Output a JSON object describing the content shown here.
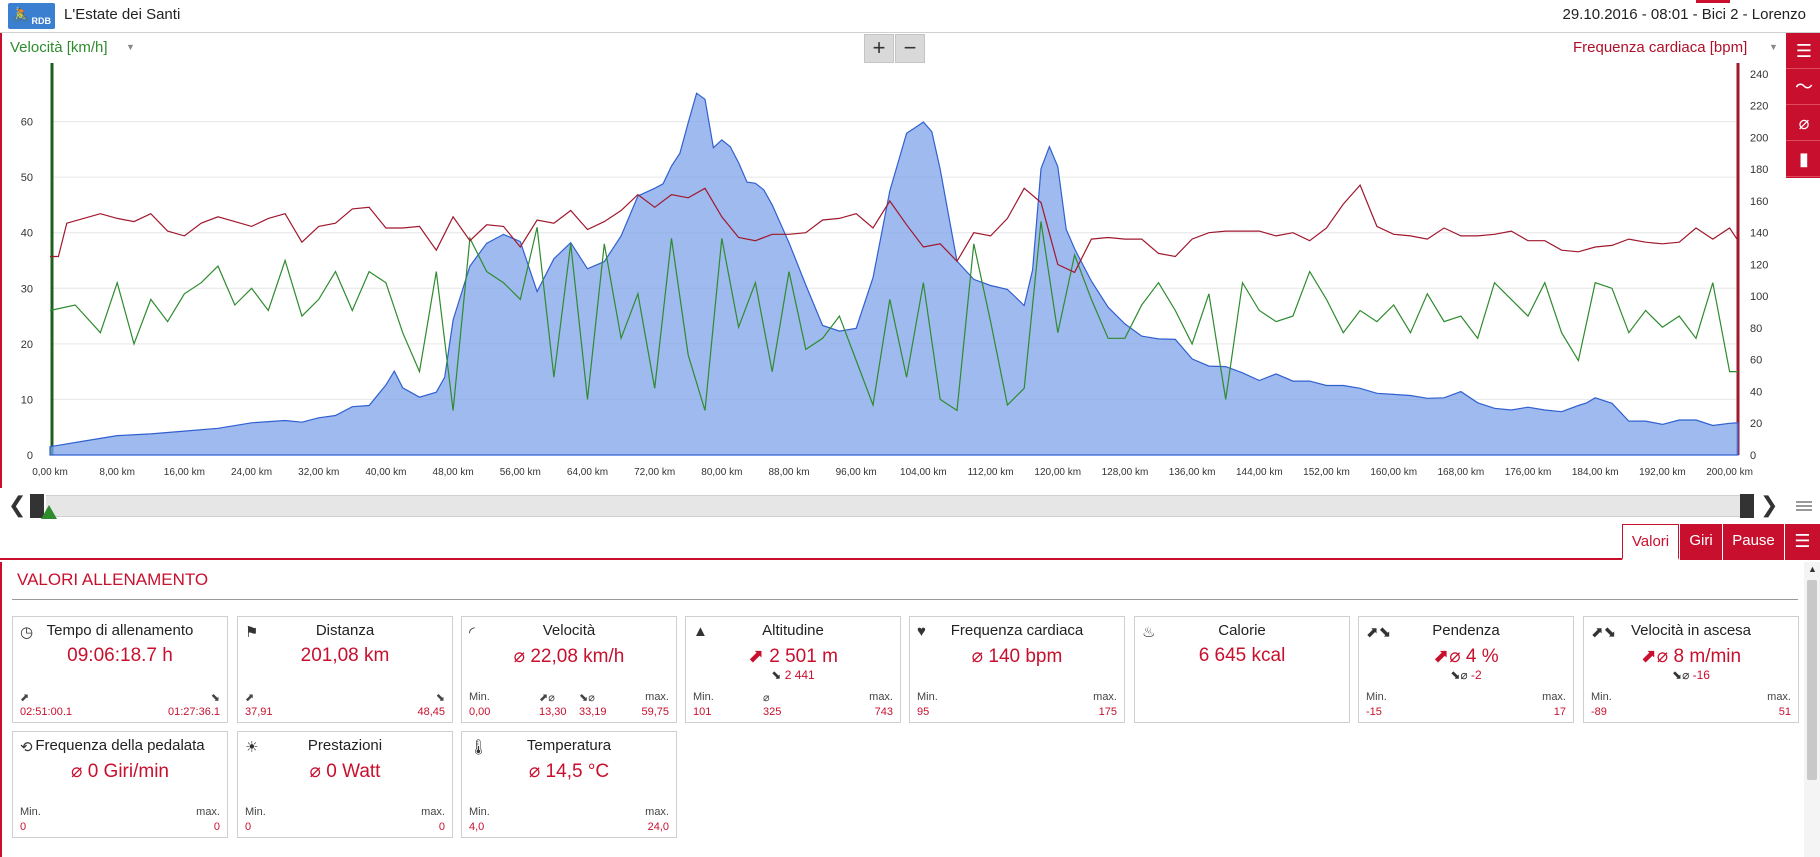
{
  "header": {
    "logo_text": "RDB",
    "app_title": "L'Estate  dei Santi",
    "session": "29.10.2016  -  08:01  -  Bici 2  -  Lorenzo"
  },
  "chart": {
    "left_series_selector": "Velocità [km/h]",
    "right_series_selector": "Frequenza cardiaca [bpm]",
    "zoom_in": "+",
    "zoom_out": "−",
    "tools": [
      "list-icon",
      "line-chart-icon",
      "average-icon",
      "bar-chart-icon"
    ]
  },
  "chart_data": {
    "type": "area",
    "xlabel": "",
    "x_ticks": [
      "0,00 km",
      "8,00 km",
      "16,00 km",
      "24,00 km",
      "32,00 km",
      "40,00 km",
      "48,00 km",
      "56,00 km",
      "64,00 km",
      "72,00 km",
      "80,00 km",
      "88,00 km",
      "96,00 km",
      "104,00 km",
      "112,00 km",
      "120,00 km",
      "128,00 km",
      "136,00 km",
      "144,00 km",
      "152,00 km",
      "160,00 km",
      "168,00 km",
      "176,00 km",
      "184,00 km",
      "192,00 km",
      "200,00 km"
    ],
    "xlim": [
      0,
      201
    ],
    "y_left": {
      "ticks": [
        0,
        10,
        20,
        30,
        40,
        50,
        60
      ],
      "ylim": [
        0,
        70
      ]
    },
    "y_right": {
      "ticks": [
        0,
        20,
        40,
        60,
        80,
        100,
        120,
        140,
        160,
        180,
        200,
        220,
        240
      ],
      "ylim": [
        0,
        245
      ]
    },
    "series": [
      {
        "name": "Altitudine",
        "axis": "left",
        "color": "#7ea3e8",
        "x": [
          0,
          4,
          8,
          12,
          16,
          20,
          24,
          28,
          30,
          32,
          34,
          36,
          38,
          40,
          41,
          42,
          44,
          46,
          47,
          48,
          50,
          52,
          54,
          56,
          58,
          60,
          62,
          64,
          66,
          68,
          70,
          72,
          73,
          74,
          75,
          76,
          77,
          78,
          79,
          80,
          81,
          82,
          83,
          84,
          85,
          86,
          88,
          90,
          92,
          94,
          96,
          98,
          100,
          102,
          103,
          104,
          105,
          106,
          108,
          110,
          112,
          114,
          116,
          117,
          118,
          119,
          120,
          121,
          122,
          124,
          126,
          128,
          130,
          132,
          134,
          136,
          138,
          140,
          142,
          144,
          146,
          148,
          150,
          152,
          154,
          156,
          158,
          160,
          162,
          164,
          166,
          168,
          170,
          172,
          174,
          176,
          178,
          180,
          182,
          183,
          184,
          186,
          188,
          190,
          192,
          194,
          196,
          198,
          200,
          201
        ],
        "y": [
          1.5,
          2.5,
          3.5,
          3.8,
          4.3,
          4.8,
          5.8,
          6.2,
          5.9,
          6.7,
          7.1,
          8.7,
          8.9,
          12.6,
          15.1,
          12.1,
          10.4,
          11.3,
          14,
          24.3,
          34,
          38.1,
          39.7,
          38.4,
          29.4,
          35.3,
          38.2,
          33.5,
          34.8,
          39.4,
          46.6,
          48,
          48.8,
          52,
          54.3,
          59.8,
          65.1,
          64,
          55.3,
          56.7,
          55.5,
          52.6,
          49.1,
          48.9,
          47.7,
          45,
          38.2,
          30.6,
          23.3,
          22.3,
          22.8,
          31.9,
          47.5,
          57.9,
          58.9,
          59.9,
          58.2,
          51.4,
          34.9,
          31.6,
          30.5,
          29.8,
          26.9,
          33.3,
          51.5,
          55.5,
          51.9,
          40.6,
          37.1,
          31.3,
          26.6,
          23.6,
          21.4,
          20.9,
          20.8,
          17.3,
          16,
          15.9,
          14.8,
          13.4,
          14.6,
          13.3,
          13.3,
          12.5,
          12.5,
          12,
          11.1,
          10.9,
          10.7,
          10.2,
          10.3,
          11.4,
          9.4,
          8.4,
          8.1,
          8.6,
          8.1,
          7.8,
          8.9,
          9.4,
          10.3,
          9.3,
          6.1,
          6.1,
          5.5,
          6.3,
          6.3,
          5.3,
          5.7,
          5.8
        ]
      },
      {
        "name": "Velocità",
        "axis": "left",
        "color": "#2e8b2e",
        "x": [
          0,
          3,
          6,
          8,
          10,
          12,
          14,
          16,
          18,
          20,
          22,
          24,
          26,
          28,
          30,
          32,
          34,
          36,
          38,
          40,
          42,
          44,
          46,
          48,
          50,
          52,
          54,
          56,
          58,
          60,
          62,
          64,
          66,
          68,
          70,
          72,
          74,
          76,
          78,
          80,
          82,
          84,
          86,
          88,
          90,
          92,
          94,
          96,
          98,
          100,
          102,
          104,
          106,
          108,
          110,
          112,
          114,
          116,
          118,
          120,
          122,
          124,
          126,
          128,
          130,
          132,
          134,
          136,
          138,
          140,
          142,
          144,
          146,
          148,
          150,
          152,
          154,
          156,
          158,
          160,
          162,
          164,
          166,
          168,
          170,
          172,
          174,
          176,
          178,
          180,
          182,
          184,
          186,
          188,
          190,
          192,
          194,
          196,
          198,
          200,
          201
        ],
        "y": [
          26,
          27,
          22,
          31,
          20,
          28,
          24,
          29,
          31,
          34,
          27,
          30,
          26,
          35,
          25,
          28,
          33,
          26,
          33,
          31,
          22,
          15,
          33,
          8,
          39,
          33,
          31,
          28,
          41,
          14,
          38,
          10,
          38,
          21,
          29,
          12,
          39,
          18,
          8,
          39,
          23,
          31,
          15,
          33,
          19,
          21,
          25,
          17,
          9,
          28,
          14,
          31,
          10,
          8,
          38,
          24,
          9,
          12,
          42,
          22,
          36,
          28,
          21,
          21,
          27,
          31,
          26,
          20,
          29,
          10,
          31,
          26,
          24,
          25,
          33,
          28,
          22,
          26,
          24,
          27,
          22,
          29,
          24,
          25,
          21,
          31,
          28,
          25,
          31,
          22,
          17,
          31,
          30,
          22,
          26,
          23,
          25,
          21,
          31,
          15,
          15
        ]
      },
      {
        "name": "Frequenza cardiaca",
        "axis": "right",
        "color": "#a0182e",
        "x": [
          0,
          1,
          2,
          4,
          6,
          8,
          10,
          12,
          14,
          16,
          18,
          20,
          22,
          24,
          26,
          28,
          30,
          32,
          34,
          36,
          38,
          40,
          42,
          44,
          46,
          48,
          50,
          52,
          54,
          56,
          58,
          60,
          62,
          64,
          66,
          68,
          70,
          72,
          74,
          76,
          78,
          80,
          82,
          84,
          86,
          88,
          90,
          92,
          94,
          96,
          98,
          100,
          102,
          104,
          106,
          108,
          110,
          112,
          114,
          116,
          118,
          120,
          122,
          124,
          126,
          128,
          130,
          132,
          134,
          136,
          138,
          140,
          142,
          144,
          146,
          148,
          150,
          152,
          154,
          156,
          158,
          160,
          162,
          164,
          166,
          168,
          170,
          172,
          174,
          176,
          178,
          180,
          182,
          184,
          186,
          188,
          190,
          192,
          194,
          196,
          198,
          200,
          201
        ],
        "y": [
          125,
          125,
          146,
          149,
          152,
          149,
          147,
          152,
          141,
          138,
          146,
          150,
          147,
          144,
          149,
          152,
          134,
          144,
          146,
          155,
          156,
          143,
          143,
          144,
          129,
          150,
          135,
          145,
          144,
          131,
          148,
          146,
          154,
          142,
          147,
          154,
          164,
          156,
          164,
          162,
          168,
          150,
          137,
          135,
          139,
          139,
          140,
          148,
          149,
          152,
          143,
          160,
          145,
          131,
          133,
          122,
          140,
          138,
          149,
          168,
          159,
          120,
          115,
          136,
          137,
          136,
          136,
          127,
          125,
          136,
          140,
          141,
          141,
          141,
          138,
          140,
          135,
          143,
          158,
          170,
          144,
          139,
          138,
          136,
          143,
          138,
          138,
          139,
          141,
          135,
          135,
          129,
          128,
          131,
          132,
          136,
          134,
          133,
          134,
          143,
          136,
          143,
          135
        ]
      }
    ]
  },
  "scrubber": {
    "prev": "❮",
    "next": "❯"
  },
  "tabs": [
    {
      "label": "Valori",
      "active": true
    },
    {
      "label": "Giri",
      "active": false
    },
    {
      "label": "Pause",
      "active": false
    }
  ],
  "panel": {
    "title": "VALORI ALLENAMENTO",
    "cards": [
      {
        "icon": "stopwatch-icon",
        "glyph": "◷",
        "title": "Tempo di allenamento",
        "value": "09:06:18.7 h",
        "sub_a": "",
        "sub_b": "",
        "labels": [
          "⬈",
          "",
          "",
          "⬊"
        ],
        "values": [
          "02:51:00.1",
          "",
          "",
          "01:27:36.1"
        ]
      },
      {
        "icon": "signpost-icon",
        "glyph": "⚑",
        "title": "Distanza",
        "value": "201,08 km",
        "sub_a": "",
        "sub_b": "",
        "labels": [
          "⬈",
          "",
          "",
          "⬊"
        ],
        "values": [
          "37,91",
          "",
          "",
          "48,45"
        ]
      },
      {
        "icon": "gauge-icon",
        "glyph": "◜",
        "title": "Velocità",
        "value": "⌀ 22,08 km/h",
        "sub_a": "",
        "sub_b": "",
        "labels": [
          "Min.",
          "⬈⌀",
          "⬊⌀",
          "max."
        ],
        "values": [
          "0,00",
          "13,30",
          "33,19",
          "59,75"
        ]
      },
      {
        "icon": "mountain-icon",
        "glyph": "▲",
        "title": "Altitudine",
        "value": "⬈ 2 501 m",
        "sub_a": "⬊",
        "sub_b": "2 441",
        "labels": [
          "Min.",
          "⌀",
          "",
          "max."
        ],
        "values": [
          "101",
          "325",
          "",
          "743"
        ]
      },
      {
        "icon": "heart-icon",
        "glyph": "♥",
        "title": "Frequenza cardiaca",
        "value": "⌀ 140 bpm",
        "sub_a": "",
        "sub_b": "",
        "labels": [
          "Min.",
          "",
          "",
          "max."
        ],
        "values": [
          "95",
          "",
          "",
          "175"
        ]
      },
      {
        "icon": "flame-icon",
        "glyph": "♨",
        "title": "Calorie",
        "value": "6 645 kcal",
        "sub_a": "",
        "sub_b": "",
        "labels": [
          "",
          "",
          "",
          ""
        ],
        "values": [
          "",
          "",
          "",
          ""
        ]
      },
      {
        "icon": "slope-icon",
        "glyph": "⬈⬊",
        "title": "Pendenza",
        "value": "⬈⌀ 4 %",
        "sub_a": "⬊⌀",
        "sub_b": "-2",
        "labels": [
          "Min.",
          "",
          "",
          "max."
        ],
        "values": [
          "-15",
          "",
          "",
          "17"
        ]
      },
      {
        "icon": "climb-speed-icon",
        "glyph": "⬈⬊",
        "title": "Velocità in ascesa",
        "value": "⬈⌀ 8 m/min",
        "sub_a": "⬊⌀",
        "sub_b": "-16",
        "labels": [
          "Min.",
          "",
          "",
          "max."
        ],
        "values": [
          "-89",
          "",
          "",
          "51"
        ]
      },
      {
        "icon": "cadence-icon",
        "glyph": "⟲",
        "title": "Frequenza della pedalata",
        "value": "⌀ 0 Giri/min",
        "sub_a": "",
        "sub_b": "",
        "labels": [
          "Min.",
          "",
          "",
          "max."
        ],
        "values": [
          "0",
          "",
          "",
          "0"
        ]
      },
      {
        "icon": "bulb-icon",
        "glyph": "☀",
        "title": "Prestazioni",
        "value": "⌀ 0 Watt",
        "sub_a": "",
        "sub_b": "",
        "labels": [
          "Min.",
          "",
          "",
          "max."
        ],
        "values": [
          "0",
          "",
          "",
          "0"
        ]
      },
      {
        "icon": "thermometer-icon",
        "glyph": "🌡",
        "title": "Temperatura",
        "value": "⌀ 14,5 °C",
        "sub_a": "",
        "sub_b": "",
        "labels": [
          "Min.",
          "",
          "",
          "max."
        ],
        "values": [
          "4,0",
          "",
          "",
          "24,0"
        ]
      }
    ]
  }
}
